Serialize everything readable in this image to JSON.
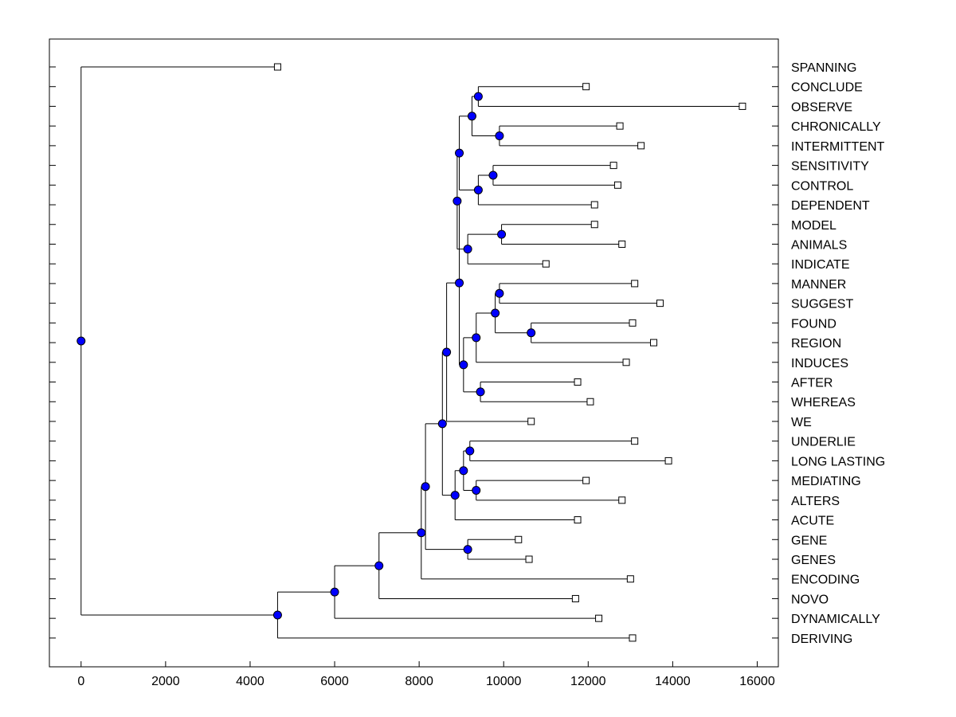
{
  "chart_data": {
    "type": "dendrogram",
    "title": "",
    "xlabel": "",
    "ylabel": "",
    "xlim": [
      -750,
      16500
    ],
    "xticks": [
      0,
      2000,
      4000,
      6000,
      8000,
      10000,
      12000,
      14000,
      16000
    ],
    "xtick_labels": [
      "0",
      "2000",
      "4000",
      "6000",
      "8000",
      "10000",
      "12000",
      "14000",
      "16000"
    ],
    "grid": false,
    "legend": false,
    "leaf_color": "#ffffff",
    "node_color": "#0000ff",
    "line_color": "#000000",
    "leaves": [
      {
        "id": "SPANNING",
        "label": "SPANNING",
        "x": 4650
      },
      {
        "id": "CONCLUDE",
        "label": "CONCLUDE",
        "x": 11950
      },
      {
        "id": "OBSERVE",
        "label": "OBSERVE",
        "x": 15650
      },
      {
        "id": "CHRONICALLY",
        "label": "CHRONICALLY",
        "x": 12750
      },
      {
        "id": "INTERMITTENT",
        "label": "INTERMITTENT",
        "x": 13250
      },
      {
        "id": "SENSITIVITY",
        "label": "SENSITIVITY",
        "x": 12600
      },
      {
        "id": "CONTROL",
        "label": "CONTROL",
        "x": 12700
      },
      {
        "id": "DEPENDENT",
        "label": "DEPENDENT",
        "x": 12150
      },
      {
        "id": "MODEL",
        "label": "MODEL",
        "x": 12150
      },
      {
        "id": "ANIMALS",
        "label": "ANIMALS",
        "x": 12800
      },
      {
        "id": "INDICATE",
        "label": "INDICATE",
        "x": 11000
      },
      {
        "id": "MANNER",
        "label": "MANNER",
        "x": 13100
      },
      {
        "id": "SUGGEST",
        "label": "SUGGEST",
        "x": 13700
      },
      {
        "id": "FOUND",
        "label": "FOUND",
        "x": 13050
      },
      {
        "id": "REGION",
        "label": "REGION",
        "x": 13550
      },
      {
        "id": "INDUCES",
        "label": "INDUCES",
        "x": 12900
      },
      {
        "id": "AFTER",
        "label": "AFTER",
        "x": 11750
      },
      {
        "id": "WHEREAS",
        "label": "WHEREAS",
        "x": 12050
      },
      {
        "id": "WE",
        "label": "WE",
        "x": 10650
      },
      {
        "id": "UNDERLIE",
        "label": "UNDERLIE",
        "x": 13100
      },
      {
        "id": "LONG_LASTING",
        "label": "LONG LASTING",
        "x": 13900
      },
      {
        "id": "MEDIATING",
        "label": "MEDIATING",
        "x": 11950
      },
      {
        "id": "ALTERS",
        "label": "ALTERS",
        "x": 12800
      },
      {
        "id": "ACUTE",
        "label": "ACUTE",
        "x": 11750
      },
      {
        "id": "GENE",
        "label": "GENE",
        "x": 10350
      },
      {
        "id": "GENES",
        "label": "GENES",
        "x": 10600
      },
      {
        "id": "ENCODING",
        "label": "ENCODING",
        "x": 13000
      },
      {
        "id": "NOVO",
        "label": "NOVO",
        "x": 11700
      },
      {
        "id": "DYNAMICALLY",
        "label": "DYNAMICALLY",
        "x": 12250
      },
      {
        "id": "DERIVING",
        "label": "DERIVING",
        "x": 13050
      }
    ],
    "nodes": [
      {
        "id": "n_conclude_observe",
        "x": 9400,
        "children": [
          "CONCLUDE",
          "OBSERVE"
        ]
      },
      {
        "id": "n_chron_interm",
        "x": 9900,
        "children": [
          "CHRONICALLY",
          "INTERMITTENT"
        ]
      },
      {
        "id": "n_A",
        "x": 9250,
        "children": [
          "n_conclude_observe",
          "n_chron_interm"
        ]
      },
      {
        "id": "n_sens_control",
        "x": 9750,
        "children": [
          "SENSITIVITY",
          "CONTROL"
        ]
      },
      {
        "id": "n_B",
        "x": 9400,
        "children": [
          "n_sens_control",
          "DEPENDENT"
        ]
      },
      {
        "id": "n_C",
        "x": 8950,
        "children": [
          "n_A",
          "n_B"
        ]
      },
      {
        "id": "n_model_animals",
        "x": 9950,
        "children": [
          "MODEL",
          "ANIMALS"
        ]
      },
      {
        "id": "n_D",
        "x": 9150,
        "children": [
          "n_model_animals",
          "INDICATE"
        ]
      },
      {
        "id": "n_E",
        "x": 8900,
        "children": [
          "n_C",
          "n_D"
        ]
      },
      {
        "id": "n_manner_suggest",
        "x": 9900,
        "children": [
          "MANNER",
          "SUGGEST"
        ]
      },
      {
        "id": "n_found_region",
        "x": 10650,
        "children": [
          "FOUND",
          "REGION"
        ]
      },
      {
        "id": "n_F",
        "x": 9800,
        "children": [
          "n_manner_suggest",
          "n_found_region"
        ]
      },
      {
        "id": "n_G",
        "x": 9350,
        "children": [
          "n_F",
          "INDUCES"
        ]
      },
      {
        "id": "n_after_whereas",
        "x": 9450,
        "children": [
          "AFTER",
          "WHEREAS"
        ]
      },
      {
        "id": "n_H",
        "x": 9050,
        "children": [
          "n_G",
          "n_after_whereas"
        ]
      },
      {
        "id": "n_I",
        "x": 8950,
        "children": [
          "n_E",
          "n_H"
        ]
      },
      {
        "id": "n_J",
        "x": 8650,
        "children": [
          "n_I",
          "WE"
        ]
      },
      {
        "id": "n_underlie_long",
        "x": 9200,
        "children": [
          "UNDERLIE",
          "LONG_LASTING"
        ]
      },
      {
        "id": "n_mediating_alters",
        "x": 9350,
        "children": [
          "MEDIATING",
          "ALTERS"
        ]
      },
      {
        "id": "n_K",
        "x": 9050,
        "children": [
          "n_underlie_long",
          "n_mediating_alters"
        ]
      },
      {
        "id": "n_L",
        "x": 8850,
        "children": [
          "n_K",
          "ACUTE"
        ]
      },
      {
        "id": "n_M",
        "x": 8550,
        "children": [
          "n_J",
          "n_L"
        ]
      },
      {
        "id": "n_gene_genes",
        "x": 9150,
        "children": [
          "GENE",
          "GENES"
        ]
      },
      {
        "id": "n_N",
        "x": 8150,
        "children": [
          "n_M",
          "n_gene_genes"
        ]
      },
      {
        "id": "n_O",
        "x": 8050,
        "children": [
          "n_N",
          "ENCODING"
        ]
      },
      {
        "id": "n_P",
        "x": 7050,
        "children": [
          "n_O",
          "NOVO"
        ]
      },
      {
        "id": "n_Q",
        "x": 6000,
        "children": [
          "n_P",
          "DYNAMICALLY"
        ]
      },
      {
        "id": "n_R",
        "x": 4650,
        "children": [
          "n_Q",
          "DERIVING"
        ]
      },
      {
        "id": "root",
        "x": 0,
        "children": [
          "SPANNING",
          "n_R"
        ]
      }
    ]
  }
}
